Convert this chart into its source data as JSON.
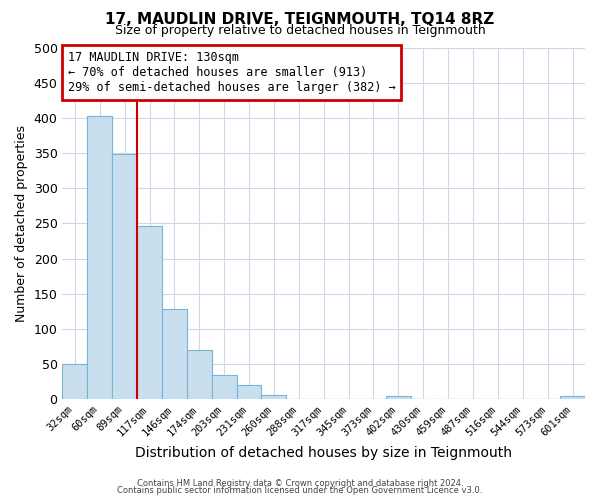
{
  "title": "17, MAUDLIN DRIVE, TEIGNMOUTH, TQ14 8RZ",
  "subtitle": "Size of property relative to detached houses in Teignmouth",
  "xlabel": "Distribution of detached houses by size in Teignmouth",
  "ylabel": "Number of detached properties",
  "bin_labels": [
    "32sqm",
    "60sqm",
    "89sqm",
    "117sqm",
    "146sqm",
    "174sqm",
    "203sqm",
    "231sqm",
    "260sqm",
    "288sqm",
    "317sqm",
    "345sqm",
    "373sqm",
    "402sqm",
    "430sqm",
    "459sqm",
    "487sqm",
    "516sqm",
    "544sqm",
    "573sqm",
    "601sqm"
  ],
  "bar_heights": [
    50,
    403,
    348,
    246,
    128,
    70,
    35,
    20,
    6,
    0,
    0,
    0,
    0,
    5,
    0,
    0,
    0,
    0,
    0,
    0,
    5
  ],
  "bar_color": "#c8dff0",
  "bar_edgecolor": "#7ab3d4",
  "vline_x": 2.5,
  "vline_color": "#cc0000",
  "annotation_text": "17 MAUDLIN DRIVE: 130sqm\n← 70% of detached houses are smaller (913)\n29% of semi-detached houses are larger (382) →",
  "annotation_box_edgecolor": "#cc0000",
  "ylim": [
    0,
    500
  ],
  "yticks": [
    0,
    50,
    100,
    150,
    200,
    250,
    300,
    350,
    400,
    450,
    500
  ],
  "footer_line1": "Contains HM Land Registry data © Crown copyright and database right 2024.",
  "footer_line2": "Contains public sector information licensed under the Open Government Licence v3.0.",
  "background_color": "#ffffff",
  "grid_color": "#cdd8e8",
  "figsize": [
    6.0,
    5.0
  ],
  "dpi": 100
}
